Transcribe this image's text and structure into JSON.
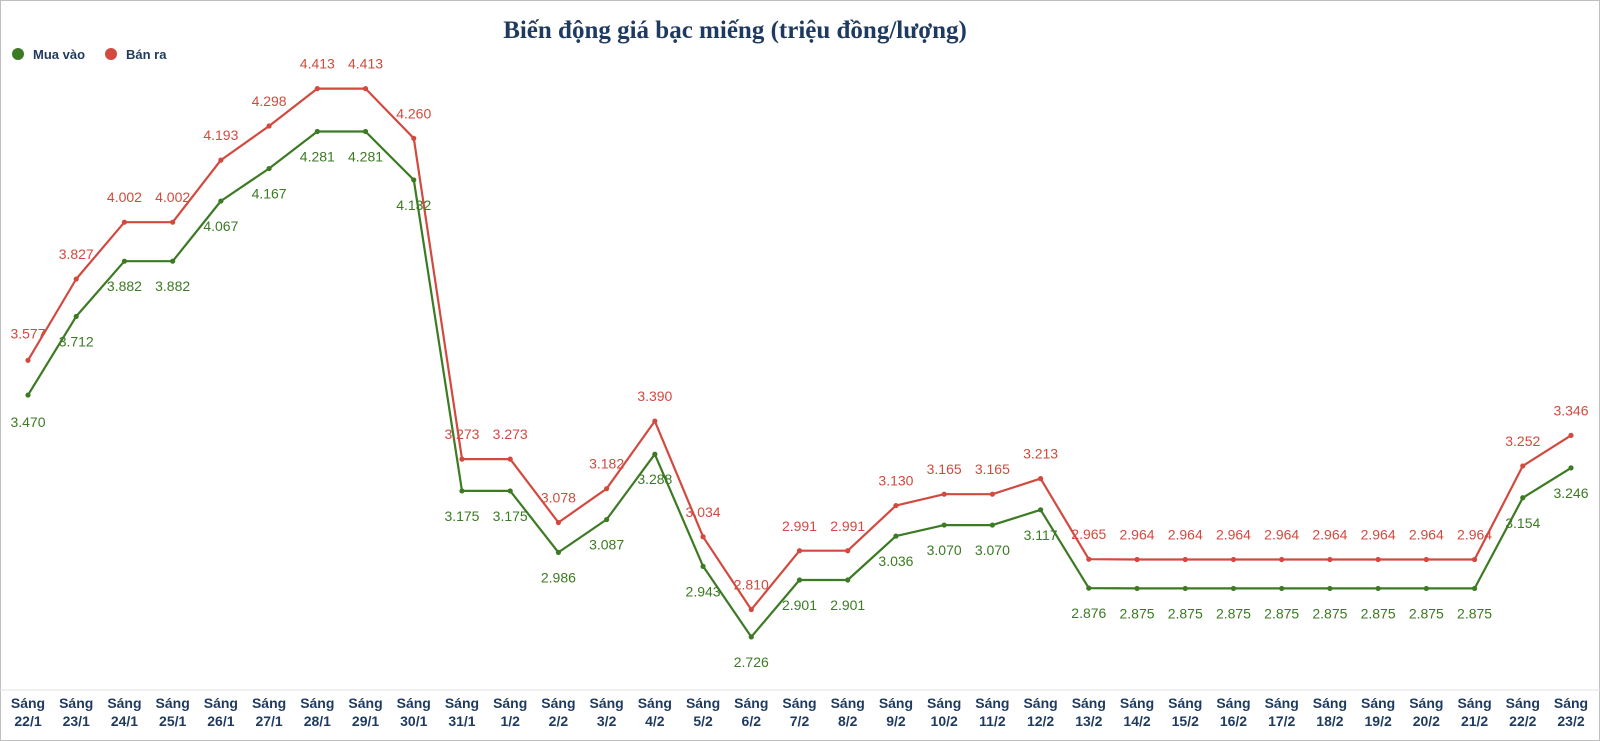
{
  "chart_data": {
    "type": "line",
    "title": "Biến động giá bạc miếng (triệu đồng/lượng)",
    "categories": [
      [
        "Sáng",
        "22/1"
      ],
      [
        "Sáng",
        "23/1"
      ],
      [
        "Sáng",
        "24/1"
      ],
      [
        "Sáng",
        "25/1"
      ],
      [
        "Sáng",
        "26/1"
      ],
      [
        "Sáng",
        "27/1"
      ],
      [
        "Sáng",
        "28/1"
      ],
      [
        "Sáng",
        "29/1"
      ],
      [
        "Sáng",
        "30/1"
      ],
      [
        "Sáng",
        "31/1"
      ],
      [
        "Sáng",
        "1/2"
      ],
      [
        "Sáng",
        "2/2"
      ],
      [
        "Sáng",
        "3/2"
      ],
      [
        "Sáng",
        "4/2"
      ],
      [
        "Sáng",
        "5/2"
      ],
      [
        "Sáng",
        "6/2"
      ],
      [
        "Sáng",
        "7/2"
      ],
      [
        "Sáng",
        "8/2"
      ],
      [
        "Sáng",
        "9/2"
      ],
      [
        "Sáng",
        "10/2"
      ],
      [
        "Sáng",
        "11/2"
      ],
      [
        "Sáng",
        "12/2"
      ],
      [
        "Sáng",
        "13/2"
      ],
      [
        "Sáng",
        "14/2"
      ],
      [
        "Sáng",
        "15/2"
      ],
      [
        "Sáng",
        "16/2"
      ],
      [
        "Sáng",
        "17/2"
      ],
      [
        "Sáng",
        "18/2"
      ],
      [
        "Sáng",
        "19/2"
      ],
      [
        "Sáng",
        "20/2"
      ],
      [
        "Sáng",
        "21/2"
      ],
      [
        "Sáng",
        "22/2"
      ],
      [
        "Sáng",
        "23/2"
      ]
    ],
    "series": [
      {
        "name": "Mua vào",
        "color": "#3c7a23",
        "values": [
          3.47,
          3.712,
          3.882,
          3.882,
          4.067,
          4.167,
          4.281,
          4.281,
          4.132,
          3.175,
          3.175,
          2.986,
          3.087,
          3.288,
          2.943,
          2.726,
          2.901,
          2.901,
          3.036,
          3.07,
          3.07,
          3.117,
          2.876,
          2.875,
          2.875,
          2.875,
          2.875,
          2.875,
          2.875,
          2.875,
          2.875,
          3.154,
          3.246
        ],
        "labels": [
          "3.470",
          "3.712",
          "3.882",
          "3.882",
          "4.067",
          "4.167",
          "4.281",
          "4.281",
          "4.132",
          "3.175",
          "3.175",
          "2.986",
          "3.087",
          "3.288",
          "2.943",
          "2.726",
          "2.901",
          "2.901",
          "3.036",
          "3.070",
          "3.070",
          "3.117",
          "2.876",
          "2.875",
          "2.875",
          "2.875",
          "2.875",
          "2.875",
          "2.875",
          "2.875",
          "2.875",
          "3.154",
          "3.246"
        ]
      },
      {
        "name": "Bán ra",
        "color": "#d24a3f",
        "values": [
          3.577,
          3.827,
          4.002,
          4.002,
          4.193,
          4.298,
          4.413,
          4.413,
          4.26,
          3.273,
          3.273,
          3.078,
          3.182,
          3.39,
          3.034,
          2.81,
          2.991,
          2.991,
          3.13,
          3.165,
          3.165,
          3.213,
          2.965,
          2.964,
          2.964,
          2.964,
          2.964,
          2.964,
          2.964,
          2.964,
          2.964,
          3.252,
          3.346
        ],
        "labels": [
          "3.577",
          "3.827",
          "4.002",
          "4.002",
          "4.193",
          "4.298",
          "4.413",
          "4.413",
          "4.260",
          "3.273",
          "3.273",
          "3.078",
          "3.182",
          "3.390",
          "3.034",
          "2.810",
          "2.991",
          "2.991",
          "3.130",
          "3.165",
          "3.165",
          "3.213",
          "2.965",
          "2.964",
          "2.964",
          "2.964",
          "2.964",
          "2.964",
          "2.964",
          "2.964",
          "2.964",
          "3.252",
          "3.346"
        ]
      }
    ],
    "legend": "top-left",
    "grid": false
  }
}
